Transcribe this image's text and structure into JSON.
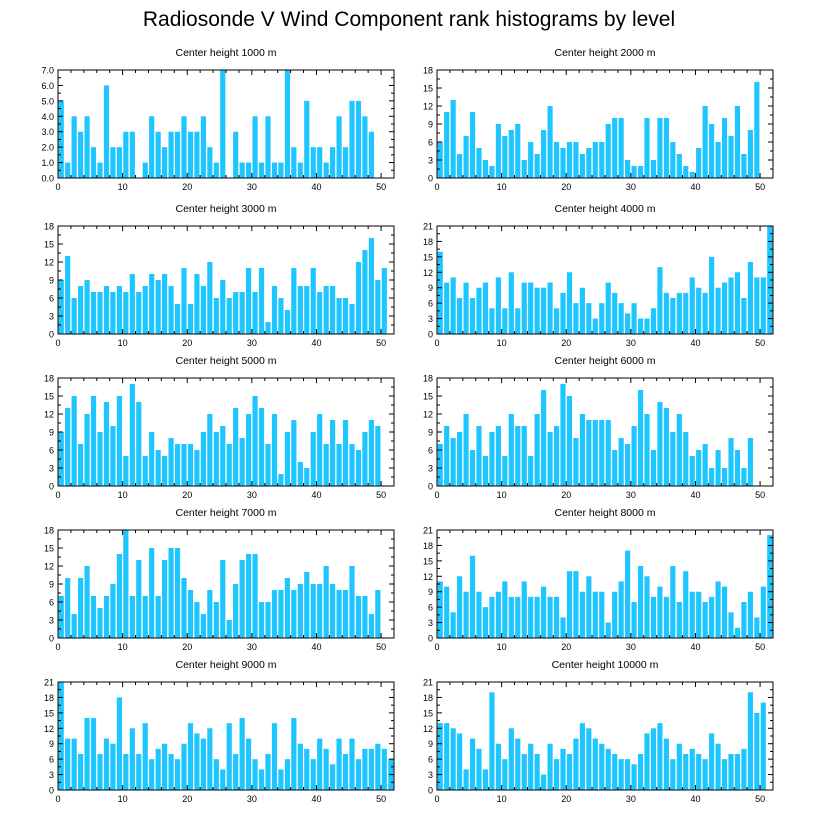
{
  "figure_title": "Radiosonde V Wind Component rank histograms by level",
  "bar_color": "#1ec6ff",
  "chart_data": [
    {
      "type": "bar",
      "title": "Center height 1000 m",
      "ylim": [
        0,
        7
      ],
      "yticks": [
        "0.0",
        "1.0",
        "2.0",
        "3.0",
        "4.0",
        "5.0",
        "6.0",
        "7.0"
      ],
      "xticks": [
        "0",
        "10",
        "20",
        "30",
        "40",
        "50"
      ],
      "xlim": [
        0,
        52
      ],
      "values": [
        5,
        1,
        4,
        3,
        4,
        2,
        1,
        6,
        2,
        2,
        3,
        3,
        0,
        1,
        4,
        3,
        2,
        3,
        3,
        4,
        3,
        3,
        4,
        2,
        1,
        7,
        0,
        3,
        1,
        1,
        4,
        1,
        4,
        1,
        1,
        7,
        2,
        1,
        5,
        2,
        2,
        1,
        2,
        4,
        2,
        5,
        5,
        4,
        3
      ]
    },
    {
      "type": "bar",
      "title": "Center height 2000 m",
      "ylim": [
        0,
        18
      ],
      "yticks": [
        "0",
        "3",
        "6",
        "9",
        "12",
        "15",
        "18"
      ],
      "xticks": [
        "0",
        "10",
        "20",
        "30",
        "40",
        "50"
      ],
      "xlim": [
        0,
        52
      ],
      "values": [
        6,
        11,
        13,
        4,
        7,
        11,
        5,
        3,
        2,
        9,
        7,
        8,
        9,
        3,
        6,
        4,
        8,
        12,
        6,
        5,
        6,
        6,
        4,
        5,
        6,
        6,
        9,
        10,
        10,
        3,
        2,
        2,
        10,
        3,
        10,
        10,
        6,
        4,
        2,
        1,
        5,
        12,
        9,
        6,
        10,
        7,
        12,
        4,
        8,
        16
      ]
    },
    {
      "type": "bar",
      "title": "Center height 3000 m",
      "ylim": [
        0,
        18
      ],
      "yticks": [
        "0",
        "3",
        "6",
        "9",
        "12",
        "15",
        "18"
      ],
      "xticks": [
        "0",
        "10",
        "20",
        "30",
        "40",
        "50"
      ],
      "xlim": [
        0,
        52
      ],
      "values": [
        9,
        13,
        6,
        8,
        9,
        7,
        7,
        8,
        7,
        8,
        7,
        10,
        7,
        8,
        10,
        9,
        10,
        8,
        5,
        11,
        5,
        10,
        8,
        12,
        6,
        9,
        6,
        7,
        7,
        11,
        7,
        11,
        2,
        8,
        6,
        4,
        11,
        8,
        8,
        11,
        7,
        8,
        8,
        6,
        6,
        5,
        12,
        14,
        16,
        9,
        11
      ]
    },
    {
      "type": "bar",
      "title": "Center height 4000 m",
      "ylim": [
        0,
        21
      ],
      "yticks": [
        "0",
        "3",
        "6",
        "9",
        "12",
        "15",
        "18",
        "21"
      ],
      "xticks": [
        "0",
        "10",
        "20",
        "30",
        "40",
        "50"
      ],
      "xlim": [
        0,
        52
      ],
      "values": [
        16,
        10,
        11,
        7,
        10,
        7,
        9,
        10,
        5,
        11,
        5,
        12,
        5,
        10,
        10,
        9,
        9,
        10,
        5,
        8,
        12,
        6,
        9,
        6,
        3,
        6,
        10,
        8,
        6,
        4,
        6,
        3,
        3,
        5,
        13,
        8,
        7,
        8,
        8,
        11,
        9,
        8,
        15,
        9,
        10,
        11,
        12,
        7,
        14,
        11,
        11,
        21
      ]
    },
    {
      "type": "bar",
      "title": "Center height 5000 m",
      "ylim": [
        0,
        18
      ],
      "yticks": [
        "0",
        "3",
        "6",
        "9",
        "12",
        "15",
        "18"
      ],
      "xticks": [
        "0",
        "10",
        "20",
        "30",
        "40",
        "50"
      ],
      "xlim": [
        0,
        52
      ],
      "values": [
        9,
        13,
        15,
        7,
        12,
        15,
        9,
        14,
        10,
        15,
        5,
        17,
        14,
        5,
        9,
        6,
        5,
        8,
        7,
        7,
        7,
        6,
        9,
        12,
        9,
        10,
        7,
        13,
        8,
        12,
        15,
        13,
        7,
        12,
        2,
        9,
        11,
        4,
        3,
        9,
        12,
        7,
        11,
        7,
        11,
        7,
        6,
        9,
        11,
        10
      ]
    },
    {
      "type": "bar",
      "title": "Center height 6000 m",
      "ylim": [
        0,
        18
      ],
      "yticks": [
        "0",
        "3",
        "6",
        "9",
        "12",
        "15",
        "18"
      ],
      "xticks": [
        "0",
        "10",
        "20",
        "30",
        "40",
        "50"
      ],
      "xlim": [
        0,
        52
      ],
      "values": [
        7,
        10,
        8,
        9,
        12,
        6,
        10,
        5,
        9,
        10,
        5,
        12,
        10,
        10,
        5,
        12,
        16,
        9,
        10,
        17,
        15,
        8,
        12,
        11,
        11,
        11,
        11,
        6,
        8,
        7,
        10,
        16,
        12,
        6,
        14,
        13,
        9,
        12,
        9,
        5,
        6,
        7,
        3,
        6,
        3,
        8,
        6,
        3,
        8
      ]
    },
    {
      "type": "bar",
      "title": "Center height 7000 m",
      "ylim": [
        0,
        18
      ],
      "yticks": [
        "0",
        "3",
        "6",
        "9",
        "12",
        "15",
        "18"
      ],
      "xticks": [
        "0",
        "10",
        "20",
        "30",
        "40",
        "50"
      ],
      "xlim": [
        0,
        52
      ],
      "values": [
        7,
        10,
        4,
        10,
        12,
        7,
        5,
        7,
        9,
        14,
        18,
        7,
        13,
        7,
        15,
        7,
        13,
        15,
        15,
        10,
        8,
        6,
        4,
        8,
        6,
        13,
        3,
        9,
        13,
        14,
        14,
        6,
        6,
        8,
        8,
        10,
        8,
        9,
        11,
        9,
        9,
        12,
        9,
        8,
        8,
        12,
        7,
        7,
        4,
        8
      ]
    },
    {
      "type": "bar",
      "title": "Center height 8000 m",
      "ylim": [
        0,
        21
      ],
      "yticks": [
        "0",
        "3",
        "6",
        "9",
        "12",
        "15",
        "18",
        "21"
      ],
      "xticks": [
        "0",
        "10",
        "20",
        "30",
        "40",
        "50"
      ],
      "xlim": [
        0,
        52
      ],
      "values": [
        11,
        10,
        5,
        12,
        9,
        16,
        9,
        6,
        8,
        9,
        11,
        8,
        8,
        11,
        8,
        8,
        10,
        8,
        8,
        4,
        13,
        13,
        9,
        12,
        9,
        9,
        3,
        9,
        11,
        17,
        7,
        14,
        12,
        8,
        10,
        8,
        14,
        7,
        13,
        9,
        9,
        7,
        8,
        11,
        10,
        5,
        2,
        7,
        9,
        4,
        10,
        20
      ]
    },
    {
      "type": "bar",
      "title": "Center height 9000 m",
      "ylim": [
        0,
        21
      ],
      "yticks": [
        "0",
        "3",
        "6",
        "9",
        "12",
        "15",
        "18",
        "21"
      ],
      "xticks": [
        "0",
        "10",
        "20",
        "30",
        "40",
        "50"
      ],
      "xlim": [
        0,
        52
      ],
      "values": [
        21,
        10,
        10,
        7,
        14,
        14,
        7,
        10,
        9,
        18,
        7,
        12,
        7,
        13,
        6,
        8,
        9,
        7,
        6,
        9,
        13,
        11,
        10,
        12,
        6,
        4,
        13,
        7,
        14,
        10,
        6,
        4,
        7,
        13,
        4,
        6,
        14,
        9,
        8,
        6,
        10,
        8,
        5,
        10,
        7,
        10,
        6,
        8,
        8,
        9,
        8,
        6
      ]
    },
    {
      "type": "bar",
      "title": "Center height 10000 m",
      "ylim": [
        0,
        21
      ],
      "yticks": [
        "0",
        "3",
        "6",
        "9",
        "12",
        "15",
        "18",
        "21"
      ],
      "xticks": [
        "0",
        "10",
        "20",
        "30",
        "40",
        "50"
      ],
      "xlim": [
        0,
        52
      ],
      "values": [
        13,
        13,
        12,
        11,
        4,
        10,
        8,
        4,
        19,
        9,
        6,
        12,
        10,
        7,
        9,
        7,
        3,
        9,
        6,
        8,
        7,
        10,
        13,
        12,
        10,
        9,
        8,
        7,
        6,
        6,
        5,
        7,
        11,
        12,
        13,
        10,
        6,
        9,
        7,
        8,
        7,
        6,
        11,
        9,
        6,
        7,
        7,
        8,
        19,
        15,
        17
      ]
    }
  ]
}
